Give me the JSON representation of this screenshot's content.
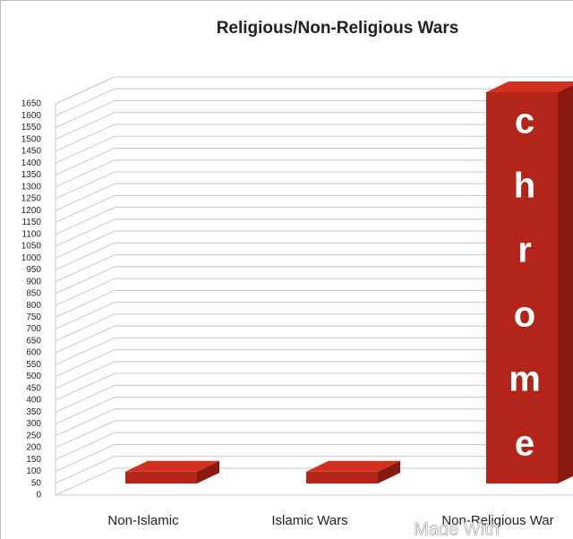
{
  "chart_data": {
    "type": "bar3d",
    "title": "Religious/Non-Religious Wars",
    "categories": [
      "Non-Islamic",
      "Islamic Wars",
      "Non-Religious War"
    ],
    "values": [
      50,
      50,
      1650
    ],
    "color": "#b3241a",
    "ylim": [
      0,
      1650
    ],
    "yticks": [
      0,
      50,
      100,
      150,
      200,
      250,
      300,
      350,
      400,
      450,
      500,
      550,
      600,
      650,
      700,
      750,
      800,
      850,
      900,
      950,
      1000,
      1050,
      1100,
      1150,
      1200,
      1250,
      1300,
      1350,
      1400,
      1450,
      1500,
      1550,
      1600,
      1650
    ],
    "grid": true
  },
  "overlay": {
    "letters": [
      "c",
      "h",
      "r",
      "o",
      "m",
      "e"
    ],
    "watermark": "Made With"
  }
}
